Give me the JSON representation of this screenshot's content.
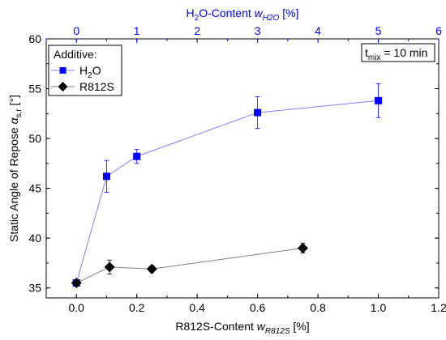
{
  "chart_data": {
    "type": "scatter",
    "bottom_axis": {
      "label_main": "R812S-Content ",
      "label_symbol": "w",
      "label_sub": "R812S",
      "label_unit": " [%]",
      "range": [
        -0.1,
        1.2
      ],
      "ticks": [
        "0.0",
        "0.2",
        "0.4",
        "0.6",
        "0.8",
        "1.0",
        "1.2"
      ]
    },
    "top_axis": {
      "label_main": "H",
      "label_sub1": "2",
      "label_mid": "O-Content ",
      "label_symbol": "w",
      "label_sub2": "H2O",
      "label_unit": " [%]",
      "range": [
        -0.5,
        6
      ],
      "ticks": [
        "0",
        "1",
        "2",
        "3",
        "4",
        "5",
        "6"
      ]
    },
    "left_axis": {
      "label_main": "Static Angle of Repose ",
      "label_symbol": "α",
      "label_sub": "s,r",
      "label_unit": " [°]",
      "range": [
        34,
        60
      ],
      "ticks": [
        "35",
        "40",
        "45",
        "50",
        "55",
        "60"
      ]
    },
    "legend": {
      "title": "Additive:",
      "position": "top-left",
      "entries": [
        {
          "label_main": "H",
          "label_sub": "2",
          "label_tail": "O"
        },
        {
          "label_main": "R812S",
          "label_sub": "",
          "label_tail": ""
        }
      ]
    },
    "annotation": {
      "main": "t",
      "sub": "mix",
      "tail": " = 10 min",
      "position": "top-right"
    },
    "series": [
      {
        "name": "H2O",
        "axis": "top",
        "marker": "square",
        "color": "#0000ff",
        "line_color": "#8080ff",
        "x": [
          0,
          0.5,
          1,
          3,
          5
        ],
        "y": [
          35.5,
          46.2,
          48.2,
          52.6,
          53.8
        ],
        "err": [
          0.3,
          1.6,
          0.7,
          1.6,
          1.7
        ]
      },
      {
        "name": "R812S",
        "axis": "bottom",
        "marker": "diamond",
        "color": "#000000",
        "line_color": "#808080",
        "x": [
          0,
          0.11,
          0.25,
          0.75
        ],
        "y": [
          35.5,
          37.1,
          36.9,
          39.0
        ],
        "err": [
          0.3,
          0.7,
          0.3,
          0.5
        ]
      }
    ]
  }
}
